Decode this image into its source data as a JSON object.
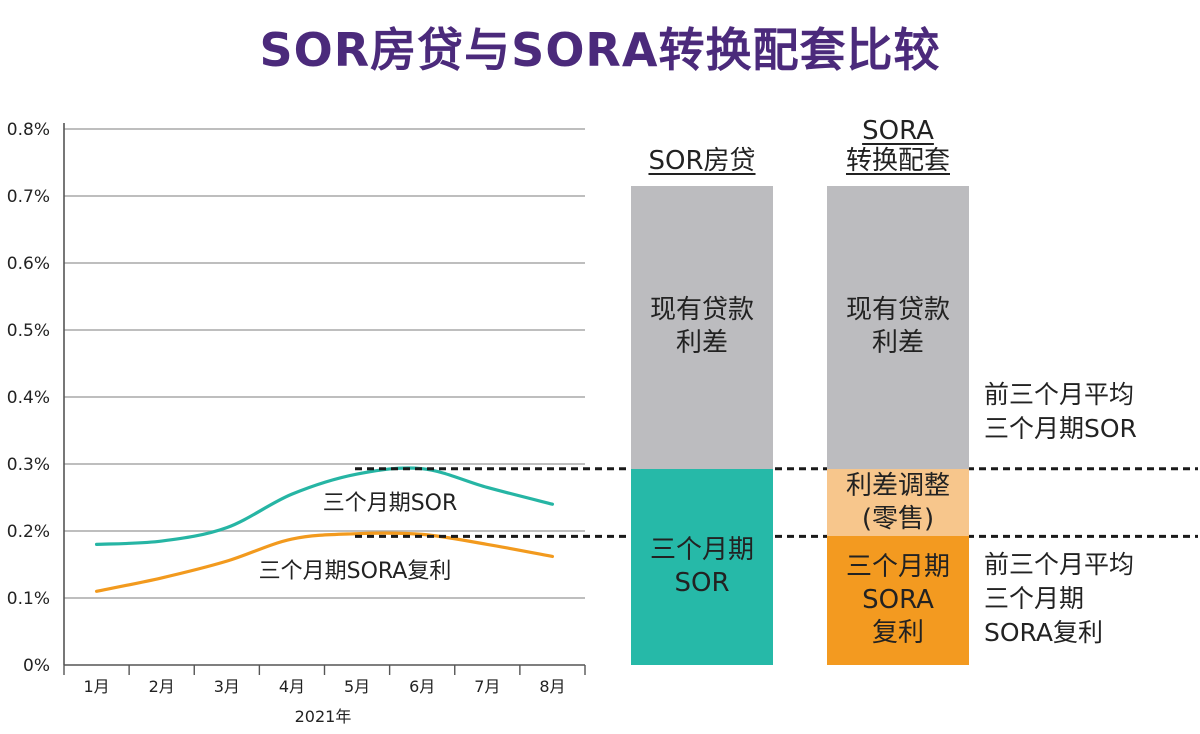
{
  "title": "SOR房贷与SORA转换配套比较",
  "chart_data": [
    {
      "type": "line",
      "x_unit": "2021年",
      "categories": [
        "1月",
        "2月",
        "3月",
        "4月",
        "5月",
        "6月",
        "7月",
        "8月"
      ],
      "ylim": [
        0,
        0.8
      ],
      "y_ticks": [
        "0%",
        "0.1%",
        "0.2%",
        "0.3%",
        "0.4%",
        "0.5%",
        "0.6%",
        "0.7%",
        "0.8%"
      ],
      "grid": true,
      "series": [
        {
          "name": "三个月期SOR",
          "color": "#26b5a4",
          "x": [
            0.5,
            1.5,
            2.5,
            3.5,
            4.5,
            5.5,
            6.5,
            7.5
          ],
          "values": [
            0.18,
            0.185,
            0.205,
            0.255,
            0.285,
            0.293,
            0.265,
            0.24
          ]
        },
        {
          "name": "三个月期SORA复利",
          "color": "#f29a1e",
          "x": [
            0.5,
            1.5,
            2.5,
            3.5,
            4.5,
            5.5,
            6.5,
            7.5
          ],
          "values": [
            0.11,
            0.13,
            0.155,
            0.188,
            0.196,
            0.195,
            0.18,
            0.162
          ]
        }
      ],
      "reference_levels": [
        0.293,
        0.192
      ]
    },
    {
      "type": "bar",
      "stacked": true,
      "ylim": [
        0,
        0.8
      ],
      "categories": [
        "SOR房贷",
        "SORA\n转换配套"
      ],
      "segments": [
        [
          {
            "label": "三个月期\nSOR",
            "from": 0,
            "to": 0.293,
            "color": "#26b9a8"
          },
          {
            "label": "现有贷款\n利差",
            "from": 0.293,
            "to": 0.715,
            "color": "#bcbcbf"
          }
        ],
        [
          {
            "label": "三个月期\nSORA\n复利",
            "from": 0,
            "to": 0.192,
            "color": "#f39a20"
          },
          {
            "label": "利差调整\n(零售)",
            "from": 0.192,
            "to": 0.293,
            "color": "#f7c68c"
          },
          {
            "label": "现有贷款\n利差",
            "from": 0.293,
            "to": 0.715,
            "color": "#bcbcbf"
          }
        ]
      ],
      "notes": [
        "前三个月平均\n三个月期SOR",
        "前三个月平均\n三个月期\nSORA复利"
      ]
    }
  ]
}
